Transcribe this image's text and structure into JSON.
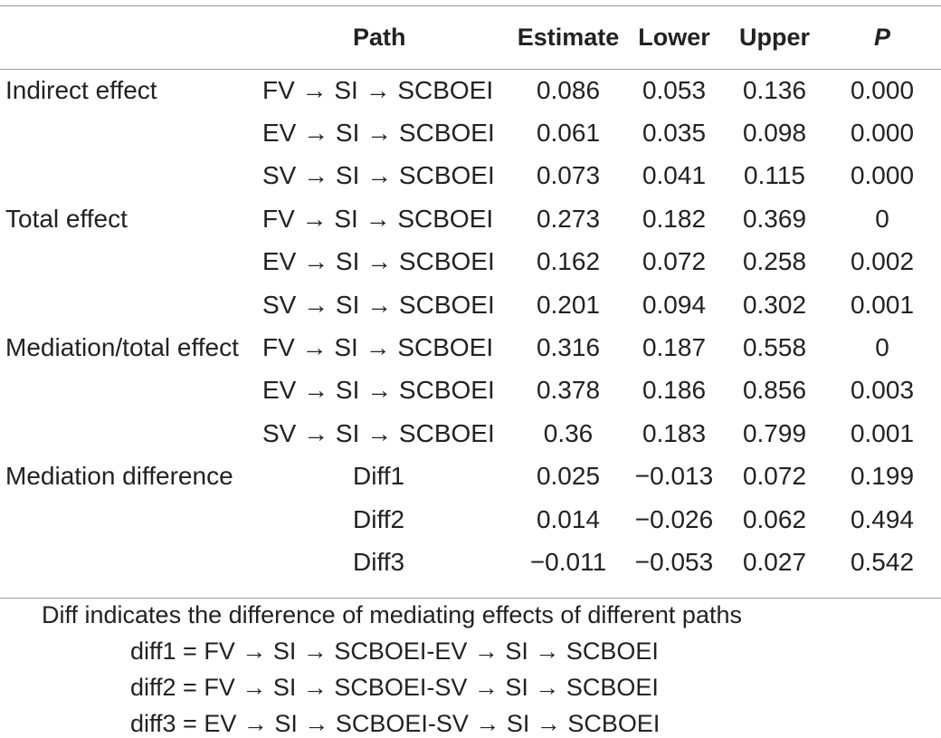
{
  "headers": {
    "label": "",
    "path": "Path",
    "estimate": "Estimate",
    "lower": "Lower",
    "upper": "Upper",
    "p": "P"
  },
  "rows": [
    {
      "label": "Indirect effect",
      "path": "FV → SI → SCBOEI",
      "estimate": "0.086",
      "lower": "0.053",
      "upper": "0.136",
      "p": "0.000"
    },
    {
      "label": "",
      "path": "EV → SI → SCBOEI",
      "estimate": "0.061",
      "lower": "0.035",
      "upper": "0.098",
      "p": "0.000"
    },
    {
      "label": "",
      "path": "SV → SI → SCBOEI",
      "estimate": "0.073",
      "lower": "0.041",
      "upper": "0.115",
      "p": "0.000"
    },
    {
      "label": "Total effect",
      "path": "FV → SI → SCBOEI",
      "estimate": "0.273",
      "lower": "0.182",
      "upper": "0.369",
      "p": "0"
    },
    {
      "label": "",
      "path": "EV → SI → SCBOEI",
      "estimate": "0.162",
      "lower": "0.072",
      "upper": "0.258",
      "p": "0.002"
    },
    {
      "label": "",
      "path": "SV → SI → SCBOEI",
      "estimate": "0.201",
      "lower": "0.094",
      "upper": "0.302",
      "p": "0.001"
    },
    {
      "label": "Mediation/total effect",
      "path": "FV → SI → SCBOEI",
      "estimate": "0.316",
      "lower": "0.187",
      "upper": "0.558",
      "p": "0"
    },
    {
      "label": "",
      "path": "EV → SI → SCBOEI",
      "estimate": "0.378",
      "lower": "0.186",
      "upper": "0.856",
      "p": "0.003"
    },
    {
      "label": "",
      "path": "SV → SI → SCBOEI",
      "estimate": "0.36",
      "lower": "0.183",
      "upper": "0.799",
      "p": "0.001"
    },
    {
      "label": "Mediation difference",
      "path": "Diff1",
      "estimate": "0.025",
      "lower": "−0.013",
      "upper": "0.072",
      "p": "0.199"
    },
    {
      "label": "",
      "path": "Diff2",
      "estimate": "0.014",
      "lower": "−0.026",
      "upper": "0.062",
      "p": "0.494"
    },
    {
      "label": "",
      "path": "Diff3",
      "estimate": "−0.011",
      "lower": "−0.053",
      "upper": "0.027",
      "p": "0.542"
    }
  ],
  "notes": {
    "intro": "Diff indicates the difference of mediating effects of different paths",
    "diff1": "diff1 = FV → SI → SCBOEI-EV → SI → SCBOEI",
    "diff2": "diff2 = FV → SI → SCBOEI-SV → SI → SCBOEI",
    "diff3": "diff3 = EV → SI → SCBOEI-SV → SI → SCBOEI"
  }
}
